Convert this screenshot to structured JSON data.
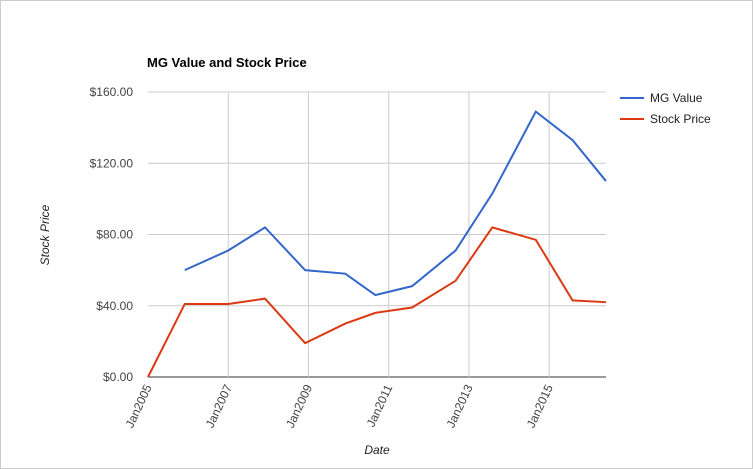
{
  "chart_data": {
    "type": "line",
    "title": "MG Value and Stock Price",
    "x_label": "Date",
    "y_label": "Stock Price",
    "x": [
      "2005-01",
      "2005-12",
      "2007-01",
      "2007-12",
      "2008-12",
      "2009-12",
      "2010-09",
      "2011-08",
      "2012-09",
      "2013-08",
      "2014-09",
      "2015-08",
      "2016-06"
    ],
    "series": [
      {
        "name": "MG Value",
        "color": "#3366cc",
        "values": [
          null,
          60,
          71,
          84,
          60,
          58,
          46,
          51,
          71,
          103,
          149,
          133,
          110
        ]
      },
      {
        "name": "Stock Price",
        "color": "#dc3912",
        "values": [
          0,
          41,
          41,
          44,
          19,
          30,
          36,
          39,
          54,
          84,
          77,
          43,
          42
        ]
      }
    ],
    "xlim": [
      "2005-01",
      "2016-06"
    ],
    "xticks": [
      {
        "value": "2005-01",
        "label": "Jan2005"
      },
      {
        "value": "2007-01",
        "label": "Jan2007"
      },
      {
        "value": "2009-01",
        "label": "Jan2009"
      },
      {
        "value": "2011-01",
        "label": "Jan2011"
      },
      {
        "value": "2013-01",
        "label": "Jan2013"
      },
      {
        "value": "2015-01",
        "label": "Jan2015"
      }
    ],
    "ylim": [
      0,
      160
    ],
    "yticks": [
      {
        "value": 0,
        "label": "$0.00"
      },
      {
        "value": 40,
        "label": "$40.00"
      },
      {
        "value": 80,
        "label": "$80.00"
      },
      {
        "value": 120,
        "label": "$120.00"
      },
      {
        "value": 160,
        "label": "$160.00"
      }
    ],
    "grid": true,
    "legend": "right"
  }
}
